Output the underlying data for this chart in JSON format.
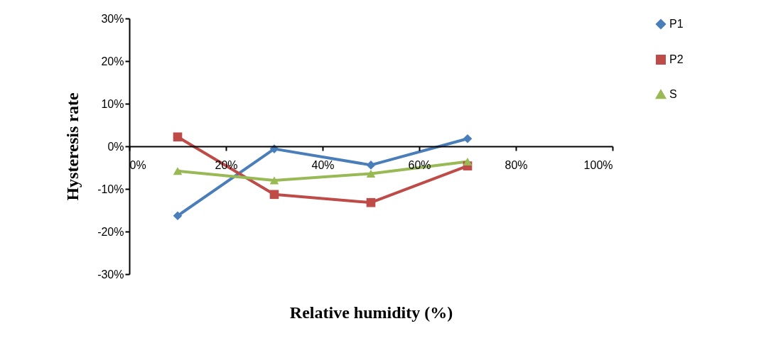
{
  "chart_data": {
    "type": "line",
    "xlabel": "Relative humidity (%)",
    "ylabel": "Hysteresis rate",
    "x": [
      10,
      30,
      50,
      70
    ],
    "series": [
      {
        "name": "P1",
        "color": "#4a7ebb",
        "marker": "diamond",
        "values": [
          -16.3,
          -0.6,
          -4.4,
          1.8
        ]
      },
      {
        "name": "P2",
        "color": "#be4b48",
        "marker": "square",
        "values": [
          2.2,
          -11.3,
          -13.2,
          -4.6
        ]
      },
      {
        "name": "S",
        "color": "#98b954",
        "marker": "triangle",
        "values": [
          -5.8,
          -8.0,
          -6.4,
          -3.6
        ]
      }
    ],
    "xlim": [
      0,
      100
    ],
    "xticks": [
      {
        "value": 0,
        "label": "0%"
      },
      {
        "value": 20,
        "label": "20%"
      },
      {
        "value": 40,
        "label": "40%"
      },
      {
        "value": 60,
        "label": "60%"
      },
      {
        "value": 80,
        "label": "80%"
      },
      {
        "value": 100,
        "label": "100%"
      }
    ],
    "ylim": [
      -30,
      30
    ],
    "yticks": [
      {
        "value": -30,
        "label": "-30%"
      },
      {
        "value": -20,
        "label": "-20%"
      },
      {
        "value": -10,
        "label": "-10%"
      },
      {
        "value": 0,
        "label": "0%"
      },
      {
        "value": 10,
        "label": "10%"
      },
      {
        "value": 20,
        "label": "20%"
      },
      {
        "value": 30,
        "label": "30%"
      }
    ],
    "grid": false,
    "legend": "right",
    "line_style": "solid"
  }
}
